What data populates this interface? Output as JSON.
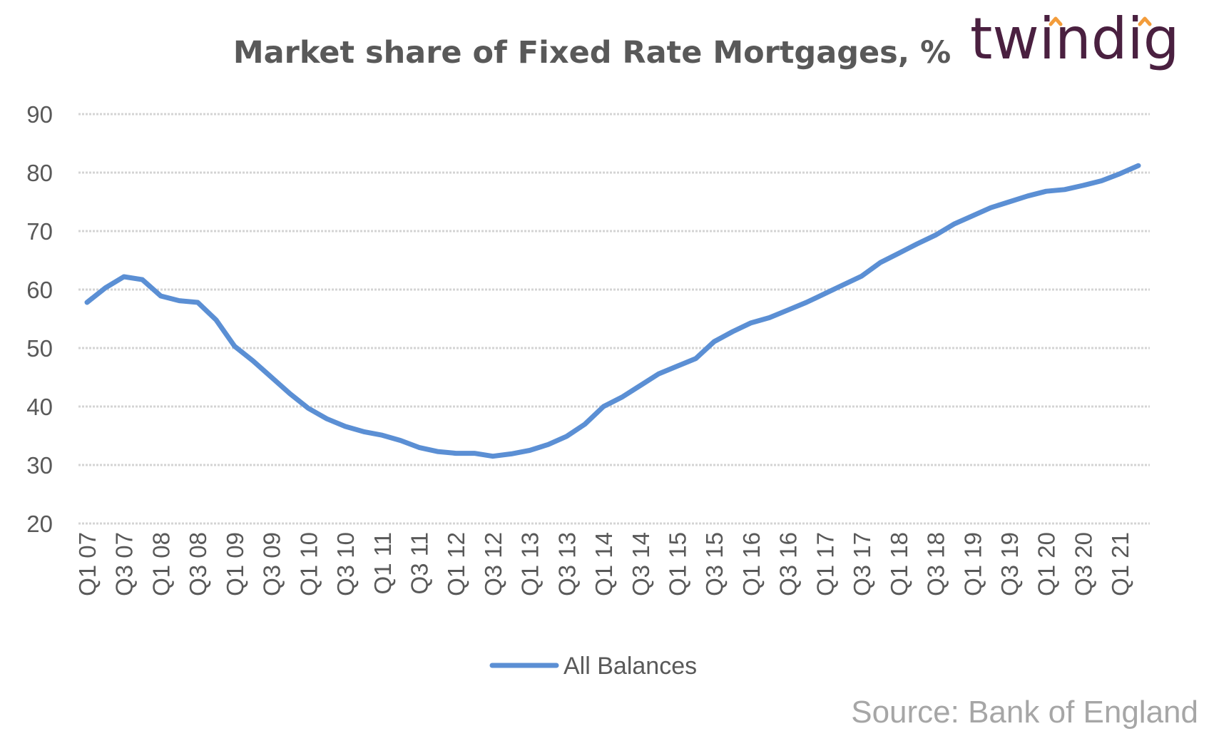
{
  "brand": {
    "logo_text": "twindig",
    "logo_color": "#4a2040",
    "accent_color": "#f39c3a"
  },
  "source": "Source: Bank of England",
  "chart_data": {
    "type": "line",
    "title": "Market share of Fixed Rate Mortgages, %",
    "xlabel": "",
    "ylabel": "",
    "ylim": [
      20,
      90
    ],
    "yticks": [
      20,
      30,
      40,
      50,
      60,
      70,
      80,
      90
    ],
    "grid": true,
    "legend_position": "bottom",
    "line_color": "#5b8fd4",
    "categories": [
      "Q1 07",
      "Q2 07",
      "Q3 07",
      "Q4 07",
      "Q1 08",
      "Q2 08",
      "Q3 08",
      "Q4 08",
      "Q1 09",
      "Q2 09",
      "Q3 09",
      "Q4 09",
      "Q1 10",
      "Q2 10",
      "Q3 10",
      "Q4 10",
      "Q1 11",
      "Q2 11",
      "Q3 11",
      "Q4 11",
      "Q1 12",
      "Q2 12",
      "Q3 12",
      "Q4 12",
      "Q1 13",
      "Q2 13",
      "Q3 13",
      "Q4 13",
      "Q1 14",
      "Q2 14",
      "Q3 14",
      "Q4 14",
      "Q1 15",
      "Q2 15",
      "Q3 15",
      "Q4 15",
      "Q1 16",
      "Q2 16",
      "Q3 16",
      "Q4 16",
      "Q1 17",
      "Q2 17",
      "Q3 17",
      "Q4 17",
      "Q1 18",
      "Q2 18",
      "Q3 18",
      "Q4 18",
      "Q1 19",
      "Q2 19",
      "Q3 19",
      "Q4 19",
      "Q1 20",
      "Q2 20",
      "Q3 20",
      "Q4 20",
      "Q1 21",
      "Q2 21"
    ],
    "tick_labels": [
      "Q1 07",
      "Q3 07",
      "Q1 08",
      "Q3 08",
      "Q1 09",
      "Q3 09",
      "Q1 10",
      "Q3 10",
      "Q1 11",
      "Q3 11",
      "Q1 12",
      "Q3 12",
      "Q1 13",
      "Q3 13",
      "Q1 14",
      "Q3 14",
      "Q1 15",
      "Q3 15",
      "Q1 16",
      "Q3 16",
      "Q1 17",
      "Q3 17",
      "Q1 18",
      "Q3 18",
      "Q1 19",
      "Q3 19",
      "Q1 20",
      "Q3 20",
      "Q1 21"
    ],
    "series": [
      {
        "name": "All Balances",
        "values": [
          57.8,
          60.3,
          62.2,
          61.7,
          58.9,
          58.1,
          57.8,
          54.8,
          50.3,
          47.8,
          45.0,
          42.2,
          39.7,
          37.9,
          36.6,
          35.7,
          35.1,
          34.2,
          33.0,
          32.3,
          32.0,
          32.0,
          31.5,
          31.9,
          32.5,
          33.5,
          34.9,
          37.0,
          40.0,
          41.6,
          43.6,
          45.6,
          46.9,
          48.2,
          51.1,
          52.8,
          54.3,
          55.2,
          56.5,
          57.8,
          59.3,
          60.8,
          62.3,
          64.6,
          66.2,
          67.8,
          69.3,
          71.2,
          72.6,
          74.0,
          75.0,
          76.0,
          76.8,
          77.1,
          77.8,
          78.6,
          79.8,
          81.2
        ]
      }
    ]
  }
}
